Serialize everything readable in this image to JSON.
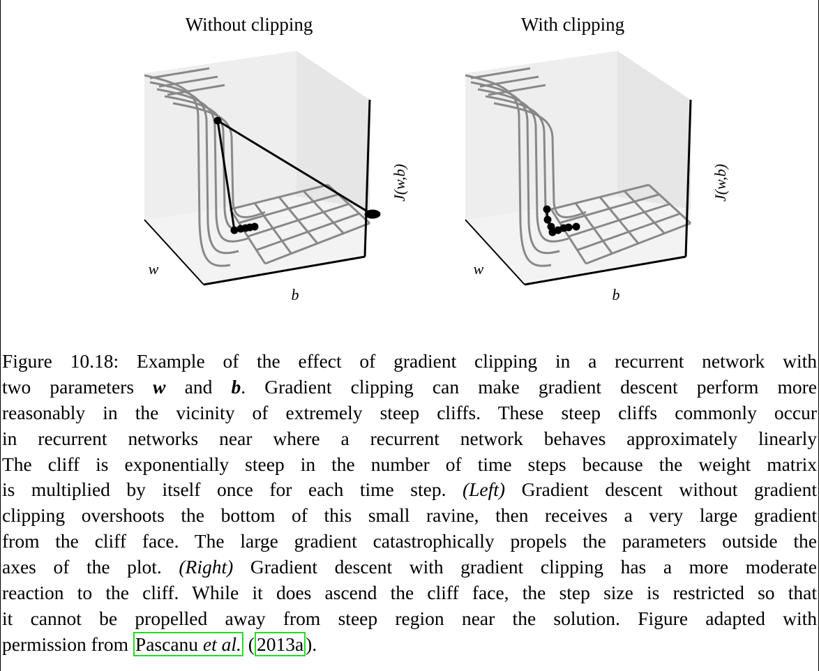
{
  "figure": {
    "panels": [
      {
        "title": "Without clipping",
        "x_label": "b",
        "y_label": "w",
        "z_label": "J(w,b)"
      },
      {
        "title": "With clipping",
        "x_label": "b",
        "y_label": "w",
        "z_label": "J(w,b)"
      }
    ],
    "caption": {
      "lines": [
        [
          "Figure 10.18: Example of the effect of gradient clipping in a recurrent network with"
        ],
        [
          "two parameters ",
          "w",
          " and ",
          "b",
          ". Gradient clipping can make gradient descent perform more"
        ],
        [
          "reasonably in the vicinity of extremely steep cliffs. These steep cliffs commonly occur"
        ],
        [
          "in recurrent networks near where a recurrent network behaves approximately linearly"
        ],
        [
          "The cliff is exponentially steep in the number of time steps because the weight matrix"
        ],
        [
          "is multiplied by itself once for each time step. ",
          "(Left)",
          " Gradient descent without gradient"
        ],
        [
          "clipping overshoots the bottom of this small ravine, then receives a very large gradient"
        ],
        [
          "from the cliff face. The large gradient catastrophically propels the parameters outside the"
        ],
        [
          "axes of the plot. ",
          "(Right)",
          " Gradient descent with gradient clipping has a more moderate"
        ],
        [
          "reaction to the cliff. While it does ascend the cliff face, the step size is restricted so that"
        ],
        [
          "it cannot be propelled away from steep region near the solution. Figure adapted with"
        ],
        [
          "permission from ",
          "Pascanu ",
          "et al.",
          " (",
          "2013a",
          ")."
        ]
      ]
    }
  }
}
